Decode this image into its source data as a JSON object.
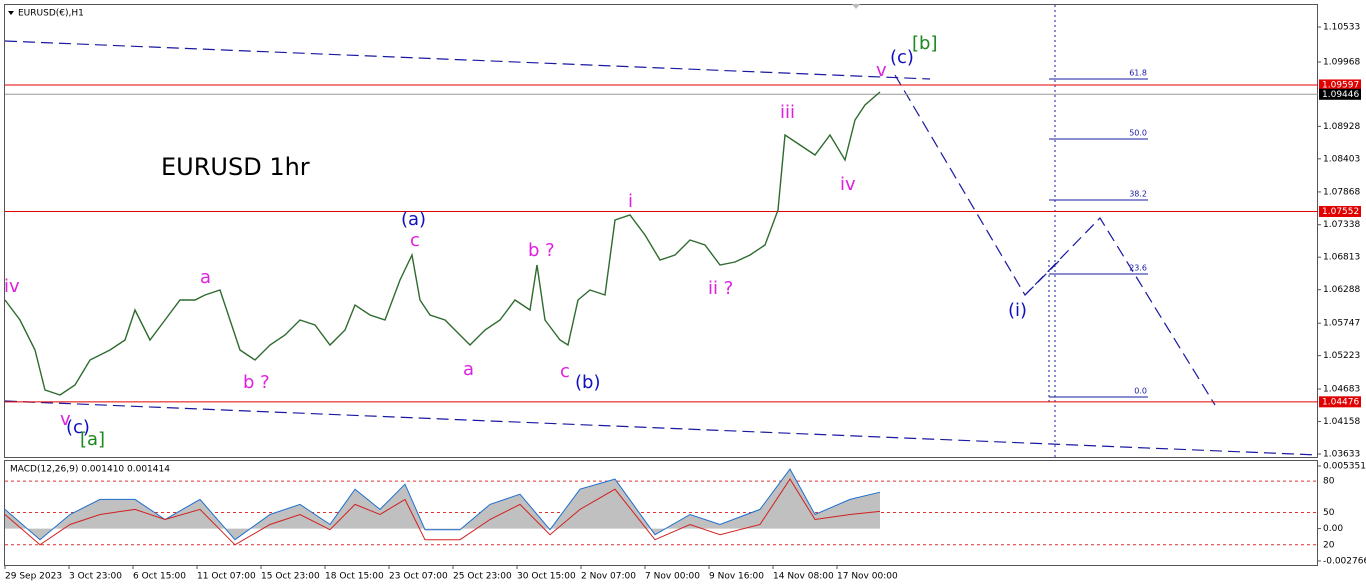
{
  "chart_data": [
    {
      "type": "line",
      "title": "EURUSD(€),H1",
      "subtitle": "EURUSD 1hr",
      "color": "#2f6b2f",
      "xlim": [
        0,
        1313
      ],
      "ylim": [
        1.03568,
        1.10889
      ],
      "xticks": [
        {
          "value": 0,
          "label": "29 Sep 2023"
        },
        {
          "value": 64,
          "label": "3 Oct 23:00"
        },
        {
          "value": 128,
          "label": "6 Oct 15:00"
        },
        {
          "value": 192,
          "label": "11 Oct 07:00"
        },
        {
          "value": 256,
          "label": "15 Oct 23:00"
        },
        {
          "value": 320,
          "label": "18 Oct 15:00"
        },
        {
          "value": 384,
          "label": "23 Oct 07:00"
        },
        {
          "value": 448,
          "label": "25 Oct 23:00"
        },
        {
          "value": 512,
          "label": "30 Oct 15:00"
        },
        {
          "value": 576,
          "label": "2 Nov 07:00"
        },
        {
          "value": 640,
          "label": "7 Nov 00:00"
        },
        {
          "value": 704,
          "label": "9 Nov 16:00"
        },
        {
          "value": 768,
          "label": "14 Nov 08:00"
        },
        {
          "value": 832,
          "label": "17 Nov 00:00"
        }
      ],
      "yticks": [
        1.10533,
        1.09968,
        1.08928,
        1.08403,
        1.07868,
        1.07338,
        1.06813,
        1.06288,
        1.05747,
        1.05223,
        1.04683,
        1.04158,
        1.03633
      ],
      "x": [
        0,
        15,
        30,
        40,
        55,
        70,
        85,
        105,
        120,
        130,
        145,
        160,
        175,
        190,
        200,
        215,
        225,
        235,
        250,
        265,
        280,
        295,
        310,
        325,
        340,
        350,
        365,
        380,
        395,
        407,
        415,
        425,
        440,
        455,
        465,
        480,
        495,
        510,
        525,
        532,
        540,
        555,
        563,
        573,
        585,
        600,
        610,
        625,
        640,
        655,
        670,
        685,
        700,
        715,
        730,
        745,
        760,
        773,
        780,
        795,
        810,
        825,
        840,
        850,
        860,
        875
      ],
      "values": [
        1.06121,
        1.05798,
        1.05313,
        1.04667,
        1.04586,
        1.04748,
        1.05152,
        1.05313,
        1.05475,
        1.0596,
        1.05475,
        1.05798,
        1.06121,
        1.06121,
        1.06202,
        1.06283,
        1.05798,
        1.05313,
        1.05152,
        1.05394,
        1.05556,
        1.05798,
        1.05717,
        1.05394,
        1.05637,
        1.06041,
        1.05879,
        1.05798,
        1.06445,
        1.06849,
        1.06121,
        1.05879,
        1.05798,
        1.05556,
        1.05394,
        1.05637,
        1.05798,
        1.06121,
        1.0596,
        1.06687,
        1.05798,
        1.05475,
        1.05394,
        1.06121,
        1.06283,
        1.06202,
        1.07414,
        1.07495,
        1.07172,
        1.06768,
        1.06849,
        1.07091,
        1.0701,
        1.06687,
        1.06735,
        1.06849,
        1.0701,
        1.07576,
        1.08788,
        1.08626,
        1.08465,
        1.08788,
        1.08384,
        1.0903,
        1.09273,
        1.09483
      ],
      "price_levels": [
        {
          "value": 1.09597,
          "color": "#e00000"
        },
        {
          "value": 1.09446,
          "color": "#000000"
        },
        {
          "value": 1.07552,
          "color": "#e00000"
        },
        {
          "value": 1.04476,
          "color": "#e00000"
        }
      ],
      "fib_levels": [
        {
          "value": 1.09693,
          "label": "61.8"
        },
        {
          "value": 1.08723,
          "label": "50.0"
        },
        {
          "value": 1.07737,
          "label": "38.2"
        },
        {
          "value": 1.06541,
          "label": "23.6"
        },
        {
          "value": 1.04554,
          "label": "0.0"
        }
      ],
      "annotations": [
        {
          "text": "iv",
          "color": "#e020e0"
        },
        {
          "text": "v",
          "color": "#e020e0"
        },
        {
          "text": "(c)",
          "color": "#1010c0"
        },
        {
          "text": "[a]",
          "color": "#1a8a1a"
        },
        {
          "text": "a",
          "color": "#e020e0"
        },
        {
          "text": "b ?",
          "color": "#e020e0"
        },
        {
          "text": "(a)",
          "color": "#1010c0"
        },
        {
          "text": "c",
          "color": "#e020e0"
        },
        {
          "text": "a",
          "color": "#e020e0"
        },
        {
          "text": "b ?",
          "color": "#e020e0"
        },
        {
          "text": "c",
          "color": "#e020e0"
        },
        {
          "text": "(b)",
          "color": "#1010c0"
        },
        {
          "text": "i",
          "color": "#e020e0"
        },
        {
          "text": "ii ?",
          "color": "#e020e0"
        },
        {
          "text": "iii",
          "color": "#e020e0"
        },
        {
          "text": "iv",
          "color": "#e020e0"
        },
        {
          "text": "v",
          "color": "#e020e0"
        },
        {
          "text": "(c)",
          "color": "#1010c0"
        },
        {
          "text": "[b]",
          "color": "#1a8a1a"
        },
        {
          "text": "(i)",
          "color": "#1010c0"
        }
      ]
    },
    {
      "type": "macd",
      "title": "MACD(12,26,9) 0.001410 0.001414",
      "xlim": [
        0,
        1313
      ],
      "ylim": [
        -0.00311,
        0.00578
      ],
      "yticks": [
        0.005351,
        {
          "value": 0,
          "label": "0.00"
        },
        -0.002766
      ],
      "levels": [
        {
          "value": 0.00406,
          "label": "80"
        },
        {
          "value": 0.00138,
          "label": "50"
        },
        {
          "value": -0.00138,
          "label": "20"
        }
      ],
      "x": [
        0,
        35,
        65,
        95,
        130,
        160,
        195,
        230,
        265,
        295,
        325,
        350,
        375,
        400,
        420,
        455,
        485,
        515,
        545,
        575,
        610,
        650,
        685,
        715,
        755,
        785,
        810,
        845,
        875
      ],
      "series": [
        {
          "color": "#1e6fd0",
          "values": [
            0.00164,
            -0.00095,
            0.00121,
            0.0025,
            0.0025,
            0.00078,
            0.0025,
            -0.00095,
            0.00121,
            0.00207,
            0.00035,
            0.00337,
            0.00164,
            0.0038,
            -9e-05,
            -9e-05,
            0.00207,
            0.00294,
            -9e-05,
            0.00337,
            0.00423,
            -0.00052,
            0.00121,
            0.00035,
            0.00164,
            0.00509,
            0.00121,
            0.0025,
            0.00311
          ]
        },
        {
          "color": "#d02020",
          "values": [
            0.00121,
            -0.00138,
            0.00035,
            0.00121,
            0.00164,
            0.00078,
            0.00164,
            -0.00138,
            0.00035,
            0.00121,
            -9e-05,
            0.00207,
            0.00121,
            0.0025,
            -0.00095,
            -0.00095,
            0.00078,
            0.00207,
            -0.00052,
            0.00164,
            0.00337,
            -0.00095,
            0.00035,
            -0.00052,
            0.00035,
            0.00423,
            0.00078,
            0.00121,
            0.00147
          ]
        }
      ]
    }
  ]
}
